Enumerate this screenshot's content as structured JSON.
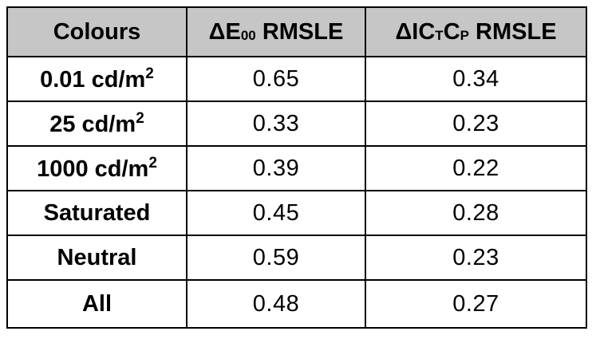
{
  "header": {
    "col1": "Colours",
    "col2": {
      "prefix": "ΔE",
      "sub": "00",
      "suffix": " RMSLE"
    },
    "col3": {
      "a": "ΔIC",
      "sub1": "T",
      "b": "C",
      "sub2": "P",
      "suffix": " RMSLE"
    }
  },
  "rows": [
    {
      "label": "0.01 cd/m",
      "sup": "2",
      "de00": "0.65",
      "ictcp": "0.34"
    },
    {
      "label": "25 cd/m",
      "sup": "2",
      "de00": "0.33",
      "ictcp": "0.23"
    },
    {
      "label": "1000 cd/m",
      "sup": "2",
      "de00": "0.39",
      "ictcp": "0.22"
    },
    {
      "label": "Saturated",
      "sup": "",
      "de00": "0.45",
      "ictcp": "0.28"
    },
    {
      "label": "Neutral",
      "sup": "",
      "de00": "0.59",
      "ictcp": "0.23"
    },
    {
      "label": "All",
      "sup": "",
      "de00": "0.48",
      "ictcp": "0.27"
    }
  ],
  "colors": {
    "header_bg": "#c6c6c6",
    "border": "#000000",
    "background": "#ffffff"
  }
}
